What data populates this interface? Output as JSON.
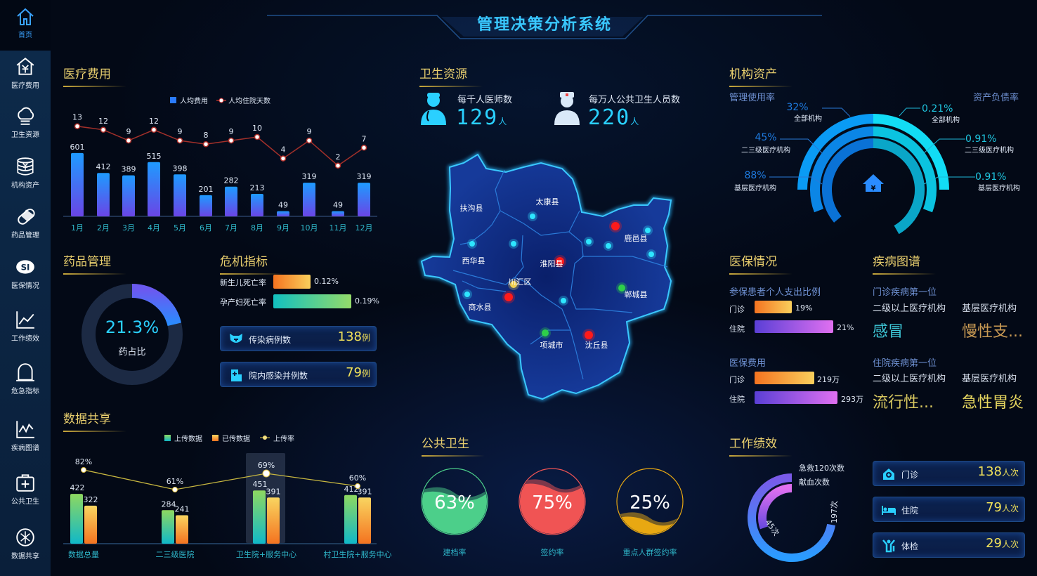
{
  "title": "管理决策分析系统",
  "sidebar": {
    "items": [
      {
        "label": "首页",
        "icon": "home-icon"
      },
      {
        "label": "医疗费用",
        "icon": "house-yuan-icon"
      },
      {
        "label": "卫生资源",
        "icon": "cloud-icon"
      },
      {
        "label": "机构资产",
        "icon": "coin-stack-icon"
      },
      {
        "label": "药品管理",
        "icon": "pill-icon"
      },
      {
        "label": "医保情况",
        "icon": "si-logo-icon"
      },
      {
        "label": "工作绩效",
        "icon": "line-chart-icon"
      },
      {
        "label": "危急指标",
        "icon": "bell-icon"
      },
      {
        "label": "疾病图谱",
        "icon": "trend-chart-icon"
      },
      {
        "label": "公共卫生",
        "icon": "medical-kit-icon"
      },
      {
        "label": "数据共享",
        "icon": "share-icon"
      }
    ]
  },
  "medical_cost": {
    "title": "医疗费用",
    "chart_data": {
      "type": "bar+line",
      "categories": [
        "1月",
        "2月",
        "3月",
        "4月",
        "5月",
        "6月",
        "7月",
        "8月",
        "9月",
        "10月",
        "11月",
        "12月"
      ],
      "series": [
        {
          "name": "人均费用",
          "type": "bar",
          "values": [
            601,
            412,
            389,
            515,
            398,
            201,
            282,
            213,
            49,
            319,
            49,
            319
          ]
        },
        {
          "name": "人均住院天数",
          "type": "line",
          "values": [
            13,
            12,
            9,
            12,
            9,
            8,
            9,
            10,
            4,
            9,
            2,
            7
          ]
        }
      ],
      "legend": "top-center"
    }
  },
  "health_resources": {
    "title": "卫生资源",
    "stats": [
      {
        "label": "每千人医师数",
        "value": "129",
        "unit": "人",
        "icon": "doctor-icon"
      },
      {
        "label": "每万人公共卫生人员数",
        "value": "220",
        "unit": "人",
        "icon": "nurse-icon"
      }
    ],
    "map": {
      "regions": [
        "扶沟县",
        "太康县",
        "鹿邑县",
        "西华县",
        "淮阳县",
        "川汇区",
        "商水县",
        "郸城县",
        "项城市",
        "沈丘县"
      ]
    }
  },
  "assets": {
    "title": "机构资产",
    "left_label": "管理使用率",
    "right_label": "资产负债率",
    "left": [
      {
        "value": "32%",
        "label": "全部机构"
      },
      {
        "value": "45%",
        "label": "二三级医疗机构"
      },
      {
        "value": "88%",
        "label": "基层医疗机构"
      }
    ],
    "right": [
      {
        "value": "0.21%",
        "label": "全部机构"
      },
      {
        "value": "0.91%",
        "label": "二三级医疗机构"
      },
      {
        "value": "0.91%",
        "label": "基层医疗机构"
      }
    ],
    "colors": {
      "left": [
        "#0a9bf5",
        "#0b86e6",
        "#0a72d6"
      ],
      "right": [
        "#12dcf5",
        "#0bc3e0",
        "#0aa6c8"
      ]
    }
  },
  "drugs": {
    "title": "药品管理",
    "ratio": "21.3%",
    "ratio_value": 21.3,
    "label": "药占比"
  },
  "crisis": {
    "title": "危机指标",
    "bars": [
      {
        "label": "新生儿死亡率",
        "value": "0.12%"
      },
      {
        "label": "孕产妇死亡率",
        "value": "0.19%"
      }
    ],
    "cards": [
      {
        "label": "传染病例数",
        "value": "138",
        "unit": "例"
      },
      {
        "label": "院内感染并例数",
        "value": "79",
        "unit": "例"
      }
    ]
  },
  "insurance": {
    "title": "医保情况",
    "ratio_title": "参保患者个人支出比例",
    "ratio": [
      {
        "label": "门诊",
        "value": "19%"
      },
      {
        "label": "住院",
        "value": "21%"
      }
    ],
    "cost_title": "医保费用",
    "cost": [
      {
        "label": "门诊",
        "value": "219万"
      },
      {
        "label": "住院",
        "value": "293万"
      }
    ]
  },
  "disease": {
    "title": "疾病图谱",
    "outpatient_title": "门诊疾病第一位",
    "inpatient_title": "住院疾病第一位",
    "col1": "二级以上医疗机构",
    "col2": "基层医疗机构",
    "outpatient": [
      "感冒",
      "慢性支..."
    ],
    "inpatient": [
      "流行性...",
      "急性胃炎"
    ]
  },
  "data_share": {
    "title": "数据共享",
    "chart_data": {
      "type": "bar+line",
      "categories": [
        "数据总量",
        "二三级医院",
        "卫生院+服务中心",
        "村卫生院+服务中心"
      ],
      "series": [
        {
          "name": "上传数据",
          "type": "bar",
          "values": [
            422,
            284,
            451,
            412
          ]
        },
        {
          "name": "已传数据",
          "type": "bar",
          "values": [
            322,
            241,
            391,
            391
          ]
        },
        {
          "name": "上传率",
          "type": "line",
          "values": [
            82,
            61,
            69,
            60
          ],
          "labels": [
            "82%",
            "61%",
            "69%",
            "60%"
          ]
        }
      ],
      "legend": "top-center",
      "highlighted": "卫生院+服务中心"
    }
  },
  "public_health": {
    "title": "公共卫生",
    "items": [
      {
        "label": "建档率",
        "value": "63%",
        "level": 63,
        "color": "#4ccf8a"
      },
      {
        "label": "签约率",
        "value": "75%",
        "level": 75,
        "color": "#f05454"
      },
      {
        "label": "重点人群签约率",
        "value": "25%",
        "level": 25,
        "color": "#e8a812"
      }
    ]
  },
  "performance": {
    "title": "工作绩效",
    "legend": [
      "急救120次数",
      "献血次数"
    ],
    "values": [
      "197次",
      "45次"
    ],
    "cards": [
      {
        "label": "门诊",
        "value": "138",
        "unit": "人次",
        "icon": "clinic-icon"
      },
      {
        "label": "住院",
        "value": "79",
        "unit": "人次",
        "icon": "bed-icon"
      },
      {
        "label": "体检",
        "value": "29",
        "unit": "人次",
        "icon": "checkup-icon"
      }
    ]
  }
}
